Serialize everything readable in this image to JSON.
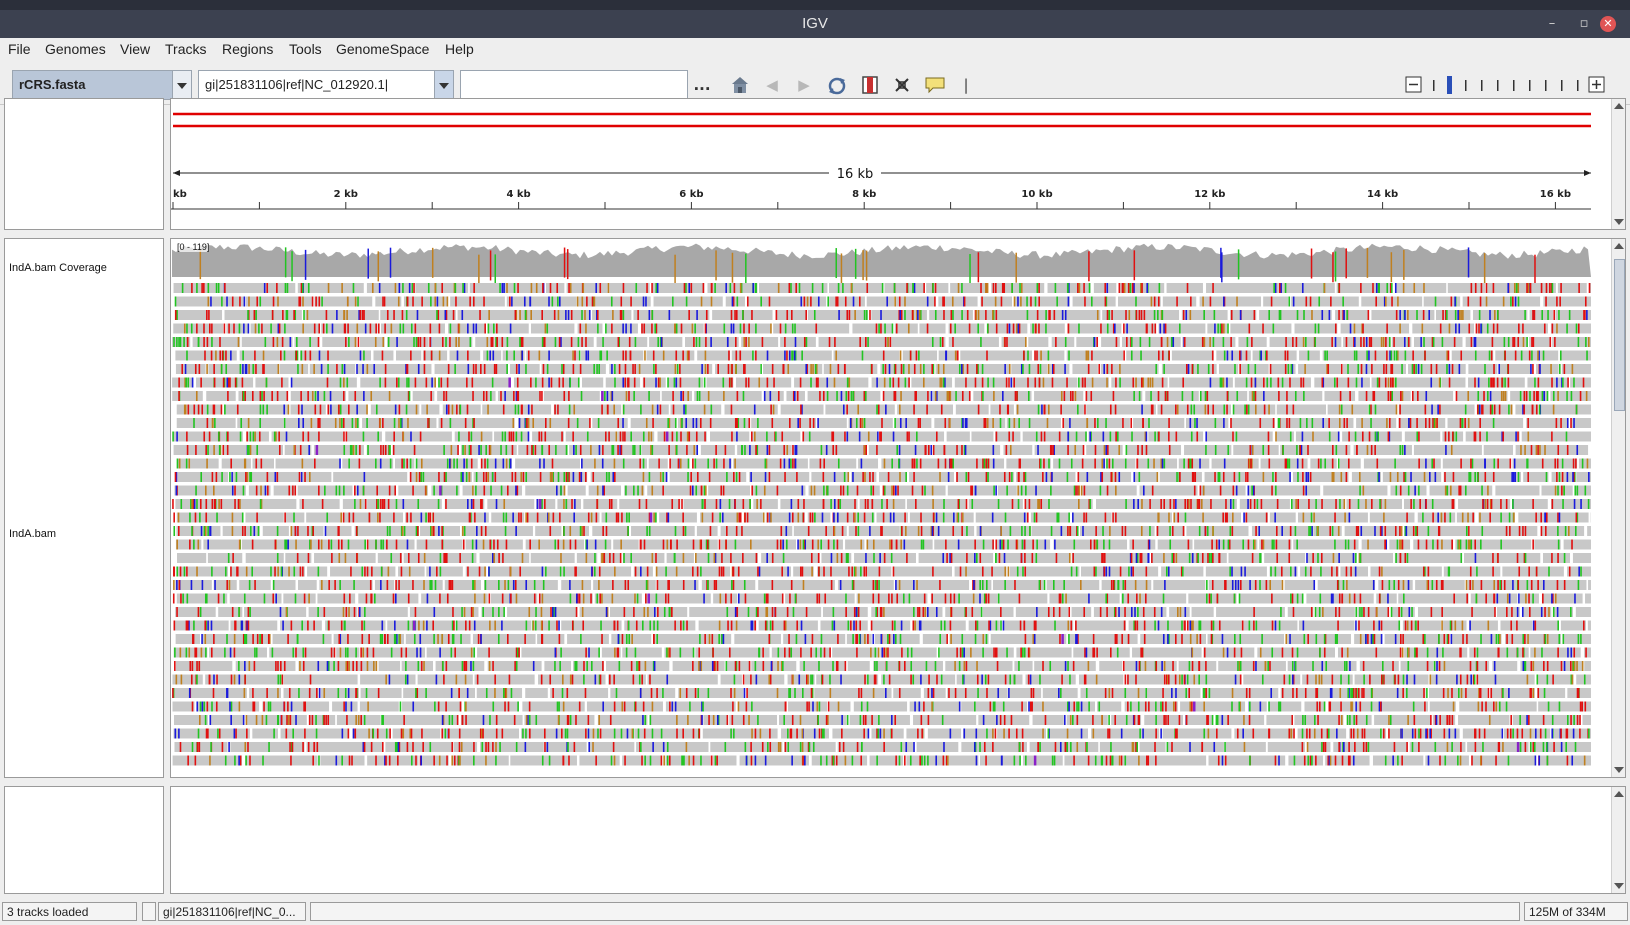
{
  "window": {
    "title": "IGV"
  },
  "window_controls": {
    "minimize": "–",
    "maximize": "▫",
    "close": "✕"
  },
  "menu": [
    {
      "label": "File",
      "underline": "F"
    },
    {
      "label": "Genomes",
      "underline": ""
    },
    {
      "label": "View",
      "underline": "V"
    },
    {
      "label": "Tracks",
      "underline": "k"
    },
    {
      "label": "Regions",
      "underline": ""
    },
    {
      "label": "Tools",
      "underline": ""
    },
    {
      "label": "GenomeSpace",
      "underline": ""
    },
    {
      "label": "Help",
      "underline": ""
    }
  ],
  "toolbar": {
    "genome": "rCRS.fasta",
    "chromosome": "gi|251831106|ref|NC_012920.1|",
    "locus_value": "",
    "more_label": "...",
    "icons": [
      "home-icon",
      "back-icon",
      "forward-icon",
      "refresh-icon",
      "region-of-interest-icon",
      "resize-icon",
      "popup-info-icon"
    ],
    "zoom_minus": "−",
    "zoom_plus": "+",
    "zoom_level": 1,
    "zoom_ticks": 10
  },
  "ruler": {
    "span_label": "16 kb",
    "ticks": [
      "kb",
      "2 kb",
      "4 kb",
      "6 kb",
      "8 kb",
      "10 kb",
      "12 kb",
      "14 kb",
      "16 kb"
    ]
  },
  "tracks": {
    "coverage": {
      "name": "IndA.bam Coverage",
      "range": "[0 - 119]"
    },
    "alignments": {
      "name": "IndA.bam"
    }
  },
  "colors": {
    "coverage": "#a8a8a8",
    "read": "#c8c8c8",
    "mismatch_A": "#22c422",
    "mismatch_C": "#1a1adc",
    "mismatch_G": "#c08020",
    "mismatch_T": "#e01010",
    "insertion": "#8a20c8",
    "ideogram": "#e00000"
  },
  "status": {
    "tracks_loaded": "3 tracks loaded",
    "locus": "gi|251831106|ref|NC_0...",
    "memory": "125M of 334M"
  }
}
